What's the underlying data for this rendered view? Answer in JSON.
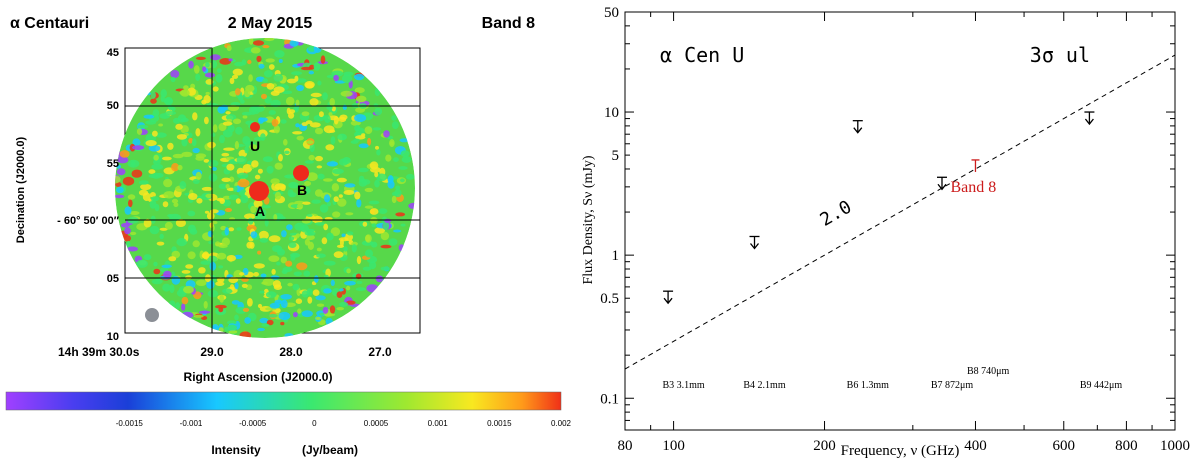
{
  "chart_data": [
    {
      "type": "heatmap",
      "title_left": "α Centauri",
      "title_center": "2 May 2015",
      "title_right": "Band 8",
      "xlabel": "Right Ascension (J2000.0)",
      "ylabel": "Decination    (J2000.0)",
      "x_ticks": [
        "14h 39m 30.0s",
        "29.0",
        "28.0",
        "27.0"
      ],
      "y_ticks": [
        "45",
        "50",
        "55",
        "- 60° 50′ 00′′",
        "05",
        "10"
      ],
      "sources": [
        {
          "name": "A",
          "size": "large"
        },
        {
          "name": "B",
          "size": "medium"
        },
        {
          "name": "U",
          "size": "small"
        }
      ],
      "colorbar": {
        "label": "Intensity",
        "unit": "(Jy/beam)",
        "ticks": [
          "-0.0015",
          "-0.001",
          "-0.0005",
          "0",
          "0.0005",
          "0.001",
          "0.0015",
          "0.002"
        ],
        "range": [
          -0.0025,
          0.002
        ],
        "colors": [
          "#a040ff",
          "#1a3fd8",
          "#18c8ff",
          "#3ae870",
          "#9ee830",
          "#f8e820",
          "#ff9a1a",
          "#f03018"
        ]
      }
    },
    {
      "type": "scatter",
      "panel_label": "α Cen U",
      "limit_label": "3σ ul",
      "xlabel": "Frequency, ν (GHz)",
      "ylabel": "Flux Density, Sν (mJy)",
      "xscale": "log",
      "yscale": "log",
      "xlim": [
        80,
        1000
      ],
      "ylim": [
        0.06,
        50
      ],
      "x_ticks": [
        80,
        100,
        200,
        400,
        600,
        800,
        1000
      ],
      "y_ticks": [
        0.1,
        0.5,
        1,
        5,
        10,
        50
      ],
      "upper_limits": [
        {
          "freq": 97.5,
          "flux": 0.56
        },
        {
          "freq": 145,
          "flux": 1.35
        },
        {
          "freq": 233,
          "flux": 8.7
        },
        {
          "freq": 343,
          "flux": 3.5
        },
        {
          "freq": 675,
          "flux": 10.0
        }
      ],
      "band8_point": {
        "freq": 400,
        "flux": 4.2,
        "label": "Band 8"
      },
      "fit_line": {
        "label": "2.0",
        "points": [
          [
            80,
            0.16
          ],
          [
            1000,
            25.0
          ]
        ]
      },
      "band_labels": [
        {
          "text": "B3 3.1mm",
          "freq": 100
        },
        {
          "text": "B4 2.1mm",
          "freq": 145
        },
        {
          "text": "B6 1.3mm",
          "freq": 233
        },
        {
          "text": "B7 872μm",
          "freq": 343
        },
        {
          "text": "B8 740μm",
          "freq": 405
        },
        {
          "text": "B9 442μm",
          "freq": 680
        }
      ]
    }
  ]
}
